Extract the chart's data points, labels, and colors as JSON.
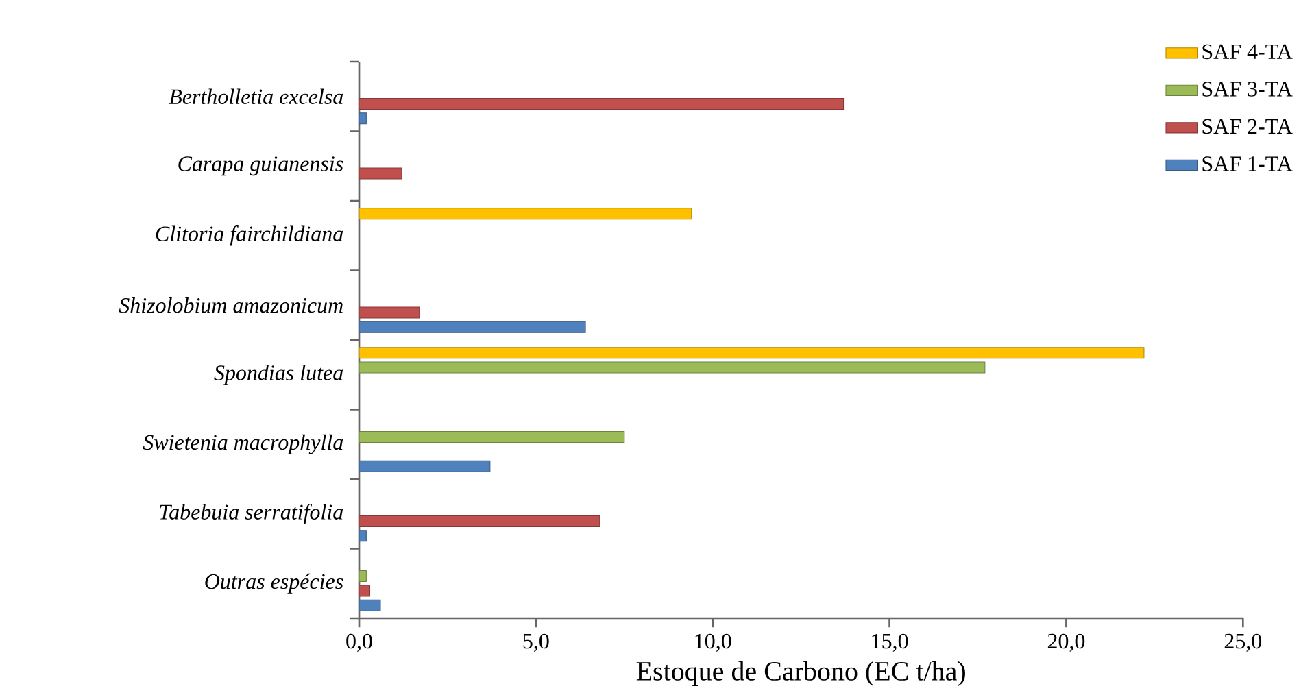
{
  "chart_data": {
    "type": "bar",
    "orientation": "horizontal",
    "xlabel": "Estoque de Carbono (EC t/ha)",
    "categories": [
      "Bertholletia excelsa",
      "Carapa guianensis",
      "Clitoria fairchildiana",
      "Shizolobium amazonicum",
      "Spondias lutea",
      "Swietenia macrophylla",
      "Tabebuia serratifolia",
      "Outras espécies"
    ],
    "series": [
      {
        "name": "SAF 1-TA",
        "color": "#4f81bd",
        "values": [
          0.2,
          null,
          null,
          6.4,
          null,
          3.7,
          0.2,
          0.6
        ]
      },
      {
        "name": "SAF 2-TA",
        "color": "#c0504d",
        "values": [
          13.7,
          1.2,
          null,
          1.7,
          null,
          null,
          6.8,
          0.3
        ]
      },
      {
        "name": "SAF 3-TA",
        "color": "#9bbb59",
        "values": [
          null,
          null,
          null,
          null,
          17.7,
          7.5,
          null,
          0.2
        ]
      },
      {
        "name": "SAF 4-TA",
        "color": "#ffc000",
        "values": [
          null,
          null,
          9.4,
          null,
          22.2,
          null,
          null,
          null
        ]
      }
    ],
    "xlim": [
      0,
      25
    ],
    "xticks": [
      {
        "value": 0,
        "label": "0,0"
      },
      {
        "value": 5,
        "label": "5,0"
      },
      {
        "value": 10,
        "label": "10,0"
      },
      {
        "value": 15,
        "label": "15,0"
      },
      {
        "value": 20,
        "label": "20,0"
      },
      {
        "value": 25,
        "label": "25,0"
      }
    ],
    "legend": "top right",
    "grid": false
  }
}
